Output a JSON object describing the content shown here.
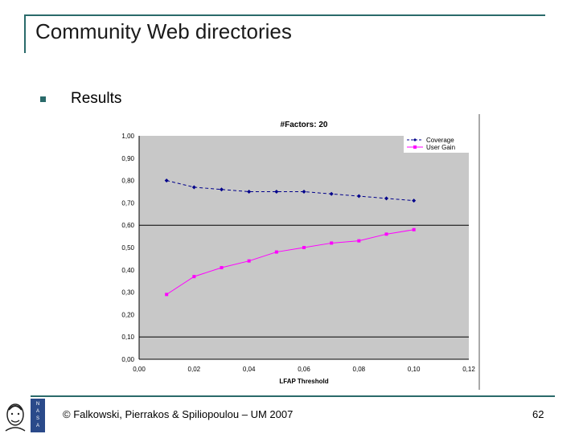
{
  "slide": {
    "title": "Community Web directories",
    "bullet": "Results",
    "footer": "© Falkowski, Pierrakos & Spiliopoulou – UM 2007",
    "page_number": "62",
    "colors": {
      "rule": "#2a6a6a",
      "plot_bg": "#c8c8c8",
      "coverage": "#00008b",
      "user_gain": "#ff00ff"
    },
    "logo_text": "NASA"
  },
  "chart_data": {
    "type": "line",
    "title": "#Factors: 20",
    "xlabel": "LFAP Threshold",
    "ylabel": "",
    "xlim": [
      0,
      0.12
    ],
    "ylim": [
      0,
      1
    ],
    "x_ticks": [
      "0,00",
      "0,02",
      "0,04",
      "0,06",
      "0,08",
      "0,10",
      "0,12"
    ],
    "y_ticks": [
      "0,00",
      "0,10",
      "0,20",
      "0,30",
      "0,40",
      "0,50",
      "0,60",
      "0,70",
      "0,80",
      "0,90",
      "1,00"
    ],
    "y_gridlines": [
      0.1,
      0.6
    ],
    "legend_position": "top-right",
    "x": [
      0.01,
      0.02,
      0.03,
      0.04,
      0.05,
      0.06,
      0.07,
      0.08,
      0.09,
      0.1
    ],
    "series": [
      {
        "name": "Coverage",
        "color": "#00008b",
        "marker": "diamond",
        "dash": true,
        "values": [
          0.8,
          0.77,
          0.76,
          0.75,
          0.75,
          0.75,
          0.74,
          0.73,
          0.72,
          0.71
        ]
      },
      {
        "name": "User Gain",
        "color": "#ff00ff",
        "marker": "square",
        "dash": false,
        "values": [
          0.29,
          0.37,
          0.41,
          0.44,
          0.48,
          0.5,
          0.52,
          0.53,
          0.56,
          0.58
        ]
      }
    ]
  }
}
